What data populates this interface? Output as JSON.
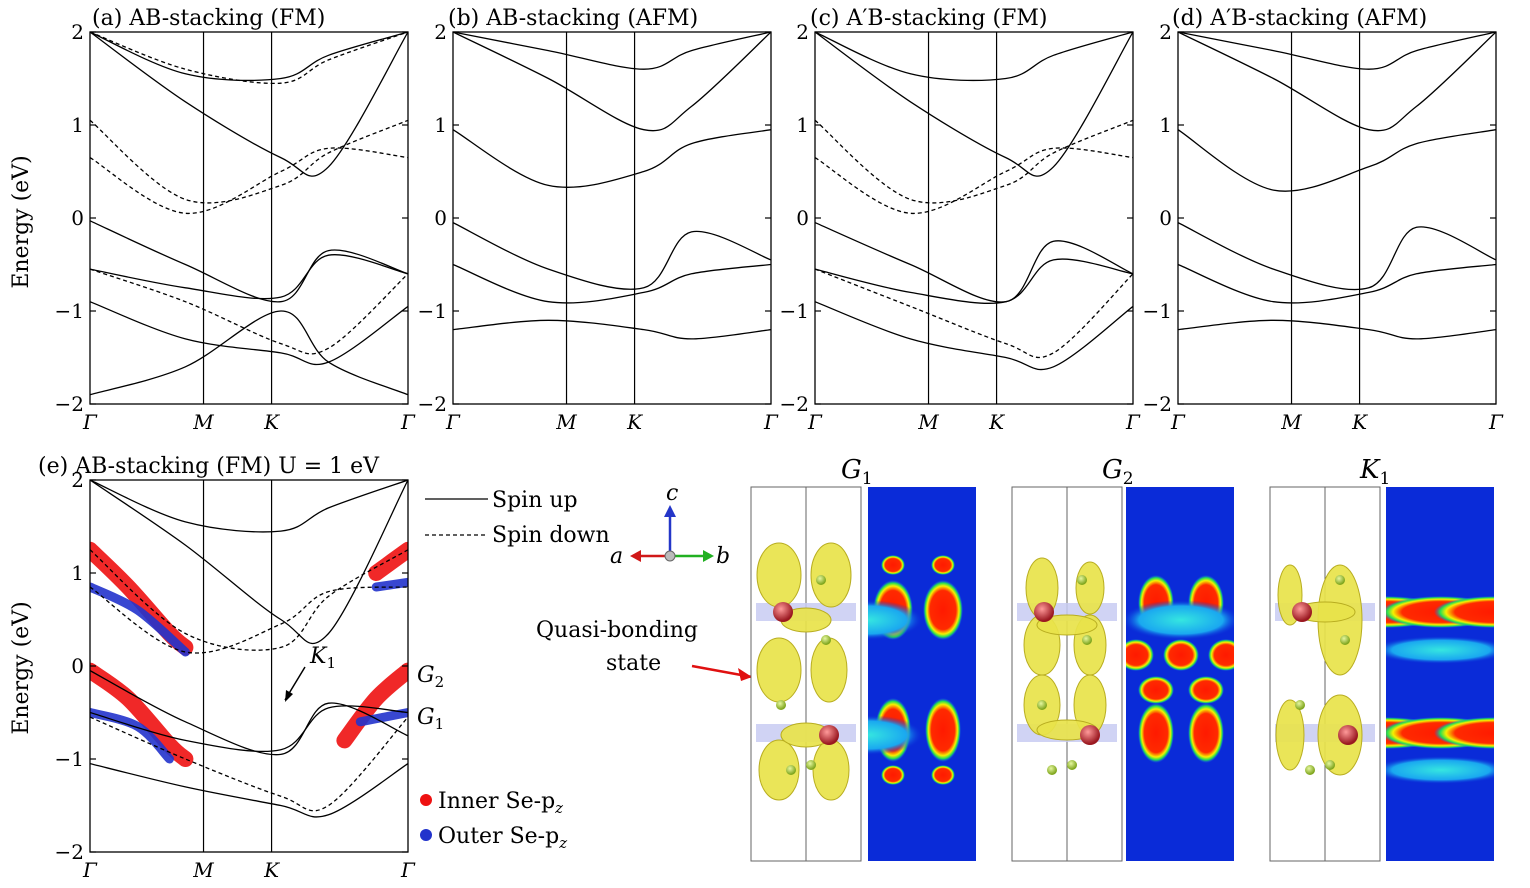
{
  "figure": {
    "ylabel": "Energy (eV)",
    "legend": {
      "solid": "Spin up",
      "dashed": "Spin down",
      "inner": "Inner Se-p",
      "outer": "Outer Se-p",
      "sub": "z"
    },
    "axes_arrows": {
      "a": "a",
      "b": "b",
      "c": "c"
    },
    "annotation": {
      "line1": "Quasi-bonding",
      "line2": "state"
    },
    "state_labels": [
      "G",
      "G",
      "K"
    ],
    "state_subs": [
      "1",
      "2",
      "1"
    ],
    "band_labels": {
      "K1": "K",
      "K1_sub": "1",
      "G2": "G",
      "G2_sub": "2",
      "G1": "G",
      "G1_sub": "1"
    },
    "colors": {
      "inner": "#ee1111",
      "outer": "#2233cc",
      "iso": "#e8e34a",
      "atom": "#c0262e",
      "cmap_bg": "#0a2bd8"
    }
  },
  "chart_data": [
    {
      "type": "line",
      "title": "(a) AB-stacking (FM)",
      "ylim": [
        -2,
        2
      ],
      "yticks": [
        "2",
        "1",
        "0",
        "−1",
        "−2"
      ],
      "xticks": [
        "Γ",
        "M",
        "K",
        "Γ"
      ],
      "series": [
        {
          "name": "Spin up",
          "style": "solid",
          "bands": [
            {
              "x": [
                0,
                0.3,
                0.6,
                0.75,
                1
              ],
              "y": [
                -0.03,
                -0.5,
                -0.9,
                -0.35,
                -0.6
              ]
            },
            {
              "x": [
                0,
                0.3,
                0.6,
                0.75,
                1
              ],
              "y": [
                -0.55,
                -0.75,
                -0.85,
                -0.4,
                -0.6
              ]
            },
            {
              "x": [
                0,
                0.3,
                0.6,
                0.75,
                1
              ],
              "y": [
                -0.9,
                -1.3,
                -1.45,
                -1.55,
                -0.95
              ]
            },
            {
              "x": [
                0,
                0.3,
                0.6,
                0.75,
                1
              ],
              "y": [
                -1.9,
                -1.6,
                -1.0,
                -1.55,
                -1.9
              ]
            },
            {
              "x": [
                0,
                0.3,
                0.6,
                0.75,
                1
              ],
              "y": [
                2.0,
                1.25,
                0.65,
                0.55,
                2.0
              ]
            },
            {
              "x": [
                0,
                0.3,
                0.6,
                0.75,
                1
              ],
              "y": [
                2.0,
                1.55,
                1.5,
                1.75,
                2.0
              ]
            }
          ]
        },
        {
          "name": "Spin down",
          "style": "dashed",
          "bands": [
            {
              "x": [
                0,
                0.3,
                0.6,
                0.75,
                1
              ],
              "y": [
                1.05,
                0.2,
                0.35,
                0.7,
                1.05
              ]
            },
            {
              "x": [
                0,
                0.3,
                0.6,
                0.75,
                1
              ],
              "y": [
                0.65,
                0.05,
                0.5,
                0.75,
                0.65
              ]
            },
            {
              "x": [
                0,
                0.3,
                0.6,
                0.75,
                1
              ],
              "y": [
                -0.55,
                -0.9,
                -1.35,
                -1.4,
                -0.6
              ]
            },
            {
              "x": [
                0,
                0.3,
                0.6,
                0.75,
                1
              ],
              "y": [
                2.0,
                1.6,
                1.45,
                1.7,
                2.0
              ]
            }
          ]
        }
      ]
    },
    {
      "type": "line",
      "title": "(b) AB-stacking (AFM)",
      "ylim": [
        -2,
        2
      ],
      "yticks": [
        "2",
        "1",
        "0",
        "−1",
        "−2"
      ],
      "xticks": [
        "Γ",
        "M",
        "K",
        "Γ"
      ],
      "series": [
        {
          "name": "",
          "style": "solid",
          "bands": [
            {
              "x": [
                0,
                0.3,
                0.6,
                0.75,
                1
              ],
              "y": [
                -0.05,
                -0.55,
                -0.75,
                -0.15,
                -0.45
              ]
            },
            {
              "x": [
                0,
                0.3,
                0.6,
                0.75,
                1
              ],
              "y": [
                -0.5,
                -0.9,
                -0.8,
                -0.6,
                -0.5
              ]
            },
            {
              "x": [
                0,
                0.3,
                0.6,
                0.75,
                1
              ],
              "y": [
                -1.2,
                -1.1,
                -1.2,
                -1.3,
                -1.2
              ]
            },
            {
              "x": [
                0,
                0.3,
                0.6,
                0.75,
                1
              ],
              "y": [
                0.95,
                0.35,
                0.5,
                0.8,
                0.95
              ]
            },
            {
              "x": [
                0,
                0.3,
                0.6,
                0.75,
                1
              ],
              "y": [
                2.0,
                1.5,
                0.95,
                1.2,
                2.0
              ]
            },
            {
              "x": [
                0,
                0.3,
                0.6,
                0.75,
                1
              ],
              "y": [
                2.0,
                1.8,
                1.6,
                1.8,
                2.0
              ]
            }
          ]
        }
      ]
    },
    {
      "type": "line",
      "title": "(c) A′B-stacking (FM)",
      "ylim": [
        -2,
        2
      ],
      "yticks": [
        "2",
        "1",
        "0",
        "−1",
        "−2"
      ],
      "xticks": [
        "Γ",
        "M",
        "K",
        "Γ"
      ],
      "series": [
        {
          "name": "Spin up",
          "style": "solid",
          "bands": [
            {
              "x": [
                0,
                0.3,
                0.6,
                0.75,
                1
              ],
              "y": [
                -0.05,
                -0.5,
                -0.9,
                -0.25,
                -0.6
              ]
            },
            {
              "x": [
                0,
                0.3,
                0.6,
                0.75,
                1
              ],
              "y": [
                -0.55,
                -0.8,
                -0.9,
                -0.45,
                -0.6
              ]
            },
            {
              "x": [
                0,
                0.3,
                0.6,
                0.75,
                1
              ],
              "y": [
                -0.9,
                -1.3,
                -1.5,
                -1.6,
                -0.95
              ]
            },
            {
              "x": [
                0,
                0.3,
                0.6,
                0.75,
                1
              ],
              "y": [
                2.0,
                1.25,
                0.65,
                0.55,
                2.0
              ]
            },
            {
              "x": [
                0,
                0.3,
                0.6,
                0.75,
                1
              ],
              "y": [
                2.0,
                1.55,
                1.5,
                1.75,
                2.0
              ]
            }
          ]
        },
        {
          "name": "Spin down",
          "style": "dashed",
          "bands": [
            {
              "x": [
                0,
                0.3,
                0.6,
                0.75,
                1
              ],
              "y": [
                1.05,
                0.2,
                0.35,
                0.7,
                1.05
              ]
            },
            {
              "x": [
                0,
                0.3,
                0.6,
                0.75,
                1
              ],
              "y": [
                0.65,
                0.05,
                0.5,
                0.75,
                0.65
              ]
            },
            {
              "x": [
                0,
                0.3,
                0.6,
                0.75,
                1
              ],
              "y": [
                -0.55,
                -0.95,
                -1.35,
                -1.45,
                -0.6
              ]
            }
          ]
        }
      ]
    },
    {
      "type": "line",
      "title": "(d) A′B-stacking (AFM)",
      "ylim": [
        -2,
        2
      ],
      "yticks": [
        "2",
        "1",
        "0",
        "−1",
        "−2"
      ],
      "xticks": [
        "Γ",
        "M",
        "K",
        "Γ"
      ],
      "series": [
        {
          "name": "",
          "style": "solid",
          "bands": [
            {
              "x": [
                0,
                0.3,
                0.6,
                0.75,
                1
              ],
              "y": [
                -0.05,
                -0.55,
                -0.75,
                -0.1,
                -0.45
              ]
            },
            {
              "x": [
                0,
                0.3,
                0.6,
                0.75,
                1
              ],
              "y": [
                -0.5,
                -0.9,
                -0.8,
                -0.6,
                -0.5
              ]
            },
            {
              "x": [
                0,
                0.3,
                0.6,
                0.75,
                1
              ],
              "y": [
                -1.2,
                -1.1,
                -1.2,
                -1.3,
                -1.2
              ]
            },
            {
              "x": [
                0,
                0.3,
                0.6,
                0.75,
                1
              ],
              "y": [
                0.95,
                0.3,
                0.55,
                0.8,
                0.95
              ]
            },
            {
              "x": [
                0,
                0.3,
                0.6,
                0.75,
                1
              ],
              "y": [
                2.0,
                1.5,
                0.95,
                1.2,
                2.0
              ]
            },
            {
              "x": [
                0,
                0.3,
                0.6,
                0.75,
                1
              ],
              "y": [
                2.0,
                1.8,
                1.6,
                1.8,
                2.0
              ]
            }
          ]
        }
      ]
    },
    {
      "type": "line",
      "title": "(e) AB-stacking (FM) U = 1 eV",
      "ylim": [
        -2,
        2
      ],
      "yticks": [
        "2",
        "1",
        "0",
        "−1",
        "−2"
      ],
      "xticks": [
        "Γ",
        "M",
        "K",
        "Γ"
      ],
      "series": [
        {
          "name": "Spin up",
          "style": "solid",
          "bands": [
            {
              "x": [
                0,
                0.3,
                0.6,
                0.75,
                1
              ],
              "y": [
                -0.05,
                -0.6,
                -0.95,
                -0.4,
                -0.75
              ]
            },
            {
              "x": [
                0,
                0.3,
                0.6,
                0.75,
                1
              ],
              "y": [
                -0.5,
                -0.8,
                -0.9,
                -0.45,
                -0.5
              ]
            },
            {
              "x": [
                0,
                0.3,
                0.6,
                0.75,
                1
              ],
              "y": [
                -1.05,
                -1.3,
                -1.5,
                -1.6,
                -1.05
              ]
            },
            {
              "x": [
                0,
                0.3,
                0.6,
                0.75,
                1
              ],
              "y": [
                2.0,
                1.3,
                0.5,
                0.35,
                2.0
              ]
            },
            {
              "x": [
                0,
                0.3,
                0.6,
                0.75,
                1
              ],
              "y": [
                2.0,
                1.55,
                1.45,
                1.7,
                2.0
              ]
            }
          ]
        },
        {
          "name": "Spin down",
          "style": "dashed",
          "bands": [
            {
              "x": [
                0,
                0.3,
                0.6,
                0.75,
                1
              ],
              "y": [
                1.25,
                0.35,
                0.2,
                0.75,
                1.25
              ]
            },
            {
              "x": [
                0,
                0.3,
                0.6,
                0.75,
                1
              ],
              "y": [
                0.85,
                0.15,
                0.45,
                0.8,
                0.85
              ]
            },
            {
              "x": [
                0,
                0.3,
                0.6,
                0.75,
                1
              ],
              "y": [
                -0.55,
                -1.0,
                -1.4,
                -1.5,
                -0.55
              ]
            }
          ]
        },
        {
          "name": "Inner Se-pz",
          "style": "fat-red",
          "bands": [
            {
              "x": [
                0,
                0.12,
                0.25,
                0.3
              ],
              "y": [
                1.25,
                0.85,
                0.35,
                0.2
              ]
            },
            {
              "x": [
                0,
                0.12,
                0.25,
                0.3
              ],
              "y": [
                -0.05,
                -0.35,
                -0.85,
                -1.0
              ]
            },
            {
              "x": [
                0.8,
                0.9,
                1
              ],
              "y": [
                -0.8,
                -0.35,
                -0.05
              ]
            },
            {
              "x": [
                0.9,
                1
              ],
              "y": [
                1.0,
                1.25
              ]
            }
          ]
        },
        {
          "name": "Outer Se-pz",
          "style": "fat-blue",
          "bands": [
            {
              "x": [
                0,
                0.15,
                0.3
              ],
              "y": [
                0.85,
                0.6,
                0.15
              ]
            },
            {
              "x": [
                0,
                0.15,
                0.25
              ],
              "y": [
                -0.5,
                -0.65,
                -1.0
              ]
            },
            {
              "x": [
                0.85,
                1
              ],
              "y": [
                -0.6,
                -0.5
              ]
            },
            {
              "x": [
                0.9,
                1
              ],
              "y": [
                0.85,
                0.9
              ]
            }
          ]
        }
      ]
    }
  ]
}
